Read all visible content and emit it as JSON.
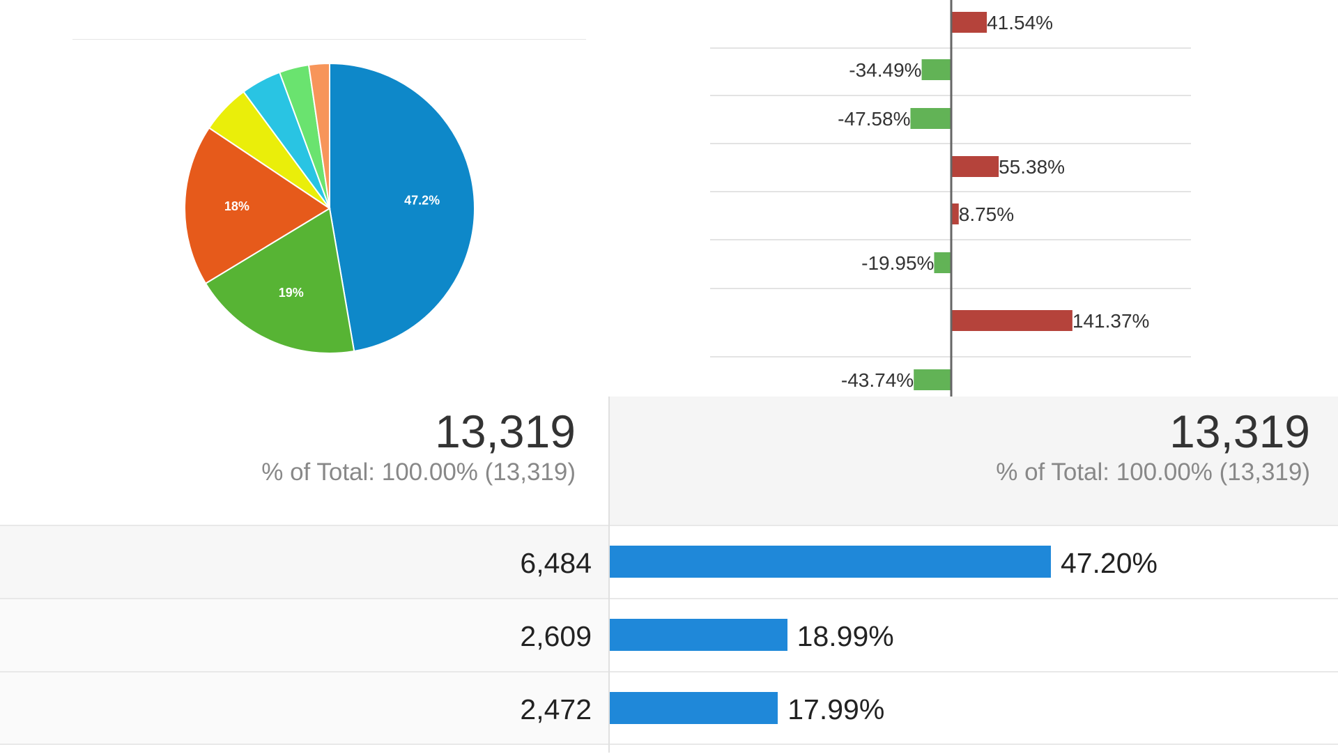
{
  "chart_data": [
    {
      "type": "pie",
      "slices": [
        {
          "value": 47.2,
          "label": "47.2%",
          "color": "#0e88c9"
        },
        {
          "value": 19.0,
          "label": "19%",
          "color": "#57b434"
        },
        {
          "value": 18.0,
          "label": "18%",
          "color": "#e65a1b"
        },
        {
          "value": 5.5,
          "label": "",
          "color": "#eaee0a"
        },
        {
          "value": 4.5,
          "label": "",
          "color": "#29c4e3"
        },
        {
          "value": 3.3,
          "label": "",
          "color": "#6ae36f"
        },
        {
          "value": 2.3,
          "label": "",
          "color": "#f7955a"
        }
      ]
    },
    {
      "type": "bar",
      "orientation": "horizontal",
      "values": [
        41.54,
        -34.49,
        -47.58,
        55.38,
        8.75,
        -19.95,
        141.37,
        -43.74
      ],
      "labels": [
        "41.54%",
        "-34.49%",
        "-47.58%",
        "55.38%",
        "8.75%",
        "-19.95%",
        "141.37%",
        "-43.74%"
      ],
      "positive_color": "#b5433b",
      "negative_color": "#62b356"
    },
    {
      "type": "table",
      "totals": [
        {
          "value": "13,319",
          "sub": "% of Total: 100.00% (13,319)"
        },
        {
          "value": "13,319",
          "sub": "% of Total: 100.00% (13,319)"
        }
      ],
      "rows": [
        {
          "value": "6,484",
          "percent": 47.2,
          "percent_label": "47.20%"
        },
        {
          "value": "2,609",
          "percent": 18.99,
          "percent_label": "18.99%"
        },
        {
          "value": "2,472",
          "percent": 17.99,
          "percent_label": "17.99%"
        }
      ],
      "bar_color": "#1f88d9"
    }
  ]
}
